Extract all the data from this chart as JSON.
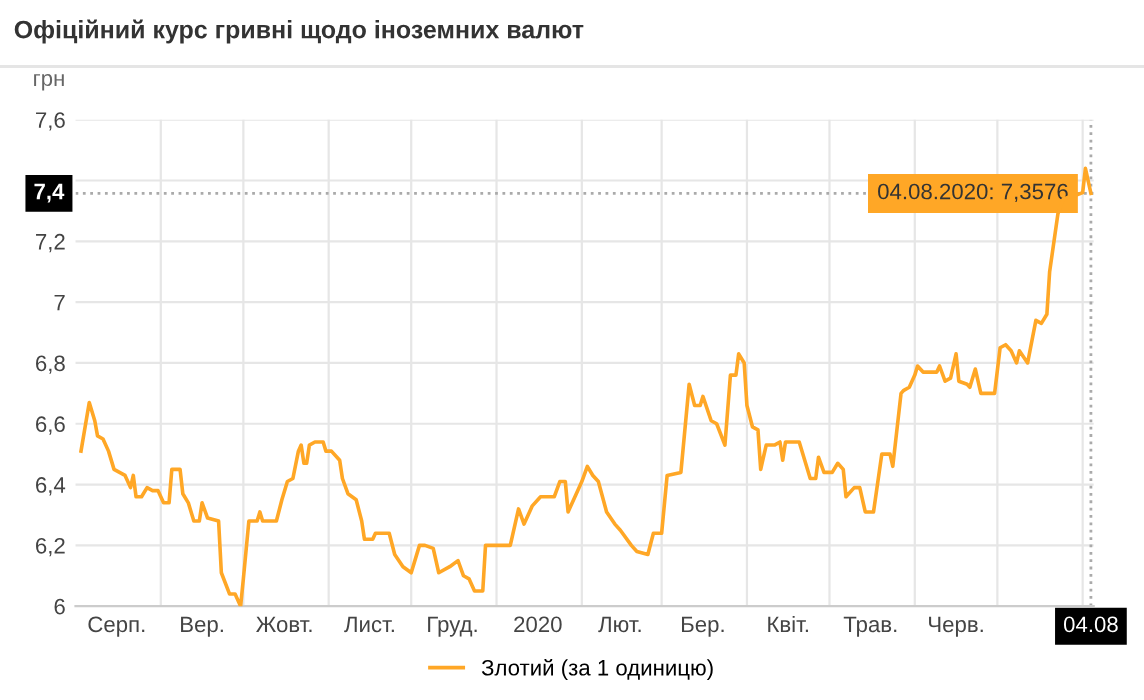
{
  "chart_data": {
    "type": "line",
    "title": "Офіційний курс гривні щодо іноземних валют",
    "ylabel": "грн",
    "ylim": [
      6,
      7.6
    ],
    "yticks": [
      {
        "value": 6,
        "label": "6"
      },
      {
        "value": 6.2,
        "label": "6,2"
      },
      {
        "value": 6.4,
        "label": "6,4"
      },
      {
        "value": 6.6,
        "label": "6,6"
      },
      {
        "value": 6.8,
        "label": "6,8"
      },
      {
        "value": 7,
        "label": "7"
      },
      {
        "value": 7.2,
        "label": "7,2"
      },
      {
        "value": 7.4,
        "label": null
      },
      {
        "value": 7.6,
        "label": "7,6"
      }
    ],
    "xlim": [
      "2019-08-01",
      "2020-08-05"
    ],
    "xticks": [
      {
        "value": "2019-08-16",
        "label": "Серп."
      },
      {
        "value": "2019-09-01",
        "label": null
      },
      {
        "value": "2019-09-16",
        "label": "Вер."
      },
      {
        "value": "2019-10-01",
        "label": null
      },
      {
        "value": "2019-10-16",
        "label": "Жовт."
      },
      {
        "value": "2019-11-01",
        "label": null
      },
      {
        "value": "2019-11-16",
        "label": "Лист."
      },
      {
        "value": "2019-12-01",
        "label": null
      },
      {
        "value": "2019-12-16",
        "label": "Груд."
      },
      {
        "value": "2020-01-01",
        "label": null
      },
      {
        "value": "2020-01-16",
        "label": "2020"
      },
      {
        "value": "2020-02-01",
        "label": null
      },
      {
        "value": "2020-02-15",
        "label": "Лют."
      },
      {
        "value": "2020-03-01",
        "label": null
      },
      {
        "value": "2020-03-16",
        "label": "Бер."
      },
      {
        "value": "2020-04-01",
        "label": null
      },
      {
        "value": "2020-04-16",
        "label": "Квіт."
      },
      {
        "value": "2020-05-01",
        "label": null
      },
      {
        "value": "2020-05-16",
        "label": "Трав."
      },
      {
        "value": "2020-06-01",
        "label": null
      },
      {
        "value": "2020-06-16",
        "label": "Черв."
      },
      {
        "value": "2020-07-01",
        "label": null
      },
      {
        "value": "2020-08-01",
        "label": null
      },
      {
        "value": "2020-08-04",
        "label": "04.08"
      }
    ],
    "grid": true,
    "legend": "bottom",
    "marker": "none",
    "line_style": "solid",
    "ref_lines": [
      {
        "axis": "y",
        "value": 7.3576,
        "label": "7,4",
        "line_style": "dotted",
        "color": "#aaaaaa"
      },
      {
        "axis": "x",
        "value": "2020-08-04",
        "line_style": "dotted",
        "color": "#aaaaaa"
      }
    ],
    "annotations": [
      {
        "text": "04.08.2020: 7,3576",
        "x": "2020-08-04",
        "y": 7.3576
      }
    ],
    "series": [
      {
        "name": "Злотий (за 1 одиницю)",
        "color": "#ffa726",
        "x": [
          "2019-08-03",
          "2019-08-06",
          "2019-08-08",
          "2019-08-09",
          "2019-08-11",
          "2019-08-13",
          "2019-08-15",
          "2019-08-17",
          "2019-08-19",
          "2019-08-21",
          "2019-08-22",
          "2019-08-23",
          "2019-08-25",
          "2019-08-27",
          "2019-08-29",
          "2019-08-31",
          "2019-09-02",
          "2019-09-04",
          "2019-09-05",
          "2019-09-08",
          "2019-09-09",
          "2019-09-11",
          "2019-09-13",
          "2019-09-15",
          "2019-09-16",
          "2019-09-18",
          "2019-09-22",
          "2019-09-23",
          "2019-09-26",
          "2019-09-28",
          "2019-09-30",
          "2019-10-01",
          "2019-10-03",
          "2019-10-06",
          "2019-10-07",
          "2019-10-08",
          "2019-10-13",
          "2019-10-15",
          "2019-10-17",
          "2019-10-19",
          "2019-10-21",
          "2019-10-22",
          "2019-10-23",
          "2019-10-24",
          "2019-10-25",
          "2019-10-27",
          "2019-10-30",
          "2019-10-31",
          "2019-11-02",
          "2019-11-05",
          "2019-11-06",
          "2019-11-08",
          "2019-11-11",
          "2019-11-13",
          "2019-11-14",
          "2019-11-17",
          "2019-11-18",
          "2019-11-20",
          "2019-11-23",
          "2019-11-25",
          "2019-11-28",
          "2019-12-01",
          "2019-12-04",
          "2019-12-06",
          "2019-12-09",
          "2019-12-11",
          "2019-12-15",
          "2019-12-18",
          "2019-12-20",
          "2019-12-22",
          "2019-12-24",
          "2019-12-27",
          "2019-12-28",
          "2020-01-06",
          "2020-01-09",
          "2020-01-11",
          "2020-01-14",
          "2020-01-17",
          "2020-01-22",
          "2020-01-24",
          "2020-01-26",
          "2020-01-27",
          "2020-01-30",
          "2020-02-01",
          "2020-02-03",
          "2020-02-05",
          "2020-02-07",
          "2020-02-10",
          "2020-02-13",
          "2020-02-15",
          "2020-02-19",
          "2020-02-21",
          "2020-02-25",
          "2020-02-27",
          "2020-03-01",
          "2020-03-03",
          "2020-03-08",
          "2020-03-11",
          "2020-03-13",
          "2020-03-15",
          "2020-03-16",
          "2020-03-19",
          "2020-03-21",
          "2020-03-24",
          "2020-03-26",
          "2020-03-28",
          "2020-03-29",
          "2020-03-31",
          "2020-04-01",
          "2020-04-03",
          "2020-04-05",
          "2020-04-06",
          "2020-04-08",
          "2020-04-11",
          "2020-04-13",
          "2020-04-14",
          "2020-04-15",
          "2020-04-20",
          "2020-04-22",
          "2020-04-24",
          "2020-04-26",
          "2020-04-27",
          "2020-04-29",
          "2020-05-02",
          "2020-05-04",
          "2020-05-06",
          "2020-05-07",
          "2020-05-10",
          "2020-05-12",
          "2020-05-14",
          "2020-05-17",
          "2020-05-20",
          "2020-05-23",
          "2020-05-24",
          "2020-05-27",
          "2020-05-28",
          "2020-05-30",
          "2020-06-01",
          "2020-06-02",
          "2020-06-04",
          "2020-06-07",
          "2020-06-09",
          "2020-06-10",
          "2020-06-12",
          "2020-06-14",
          "2020-06-16",
          "2020-06-17",
          "2020-06-20",
          "2020-06-21",
          "2020-06-23",
          "2020-06-25",
          "2020-06-30",
          "2020-07-02",
          "2020-07-04",
          "2020-07-06",
          "2020-07-08",
          "2020-07-09",
          "2020-07-12",
          "2020-07-15",
          "2020-07-17",
          "2020-07-19",
          "2020-07-20",
          "2020-07-23",
          "2020-07-25",
          "2020-07-29",
          "2020-08-01",
          "2020-08-02",
          "2020-08-04"
        ],
        "values": [
          6.51,
          6.67,
          6.61,
          6.56,
          6.55,
          6.51,
          6.45,
          6.44,
          6.43,
          6.39,
          6.43,
          6.36,
          6.36,
          6.39,
          6.38,
          6.38,
          6.34,
          6.34,
          6.45,
          6.45,
          6.37,
          6.34,
          6.28,
          6.28,
          6.34,
          6.29,
          6.28,
          6.11,
          6.04,
          6.04,
          6.0,
          6.09,
          6.28,
          6.28,
          6.31,
          6.28,
          6.28,
          6.35,
          6.41,
          6.42,
          6.51,
          6.53,
          6.47,
          6.47,
          6.53,
          6.54,
          6.54,
          6.51,
          6.51,
          6.48,
          6.42,
          6.37,
          6.35,
          6.28,
          6.22,
          6.22,
          6.24,
          6.24,
          6.24,
          6.17,
          6.13,
          6.11,
          6.2,
          6.2,
          6.19,
          6.11,
          6.13,
          6.15,
          6.1,
          6.09,
          6.05,
          6.05,
          6.2,
          6.2,
          6.32,
          6.27,
          6.33,
          6.36,
          6.36,
          6.41,
          6.41,
          6.31,
          6.37,
          6.41,
          6.46,
          6.43,
          6.41,
          6.31,
          6.27,
          6.25,
          6.2,
          6.18,
          6.17,
          6.24,
          6.24,
          6.43,
          6.44,
          6.73,
          6.66,
          6.66,
          6.69,
          6.61,
          6.6,
          6.53,
          6.76,
          6.76,
          6.83,
          6.8,
          6.66,
          6.59,
          6.58,
          6.45,
          6.53,
          6.53,
          6.54,
          6.48,
          6.54,
          6.54,
          6.48,
          6.42,
          6.42,
          6.49,
          6.44,
          6.44,
          6.47,
          6.45,
          6.36,
          6.39,
          6.39,
          6.31,
          6.31,
          6.5,
          6.5,
          6.46,
          6.7,
          6.71,
          6.72,
          6.76,
          6.79,
          6.77,
          6.77,
          6.77,
          6.79,
          6.74,
          6.75,
          6.83,
          6.74,
          6.73,
          6.72,
          6.78,
          6.7,
          6.7,
          6.85,
          6.86,
          6.84,
          6.8,
          6.84,
          6.8,
          6.94,
          6.93,
          6.96,
          7.1,
          7.29,
          7.34,
          7.35,
          7.36,
          7.44,
          7.3576
        ]
      }
    ]
  }
}
